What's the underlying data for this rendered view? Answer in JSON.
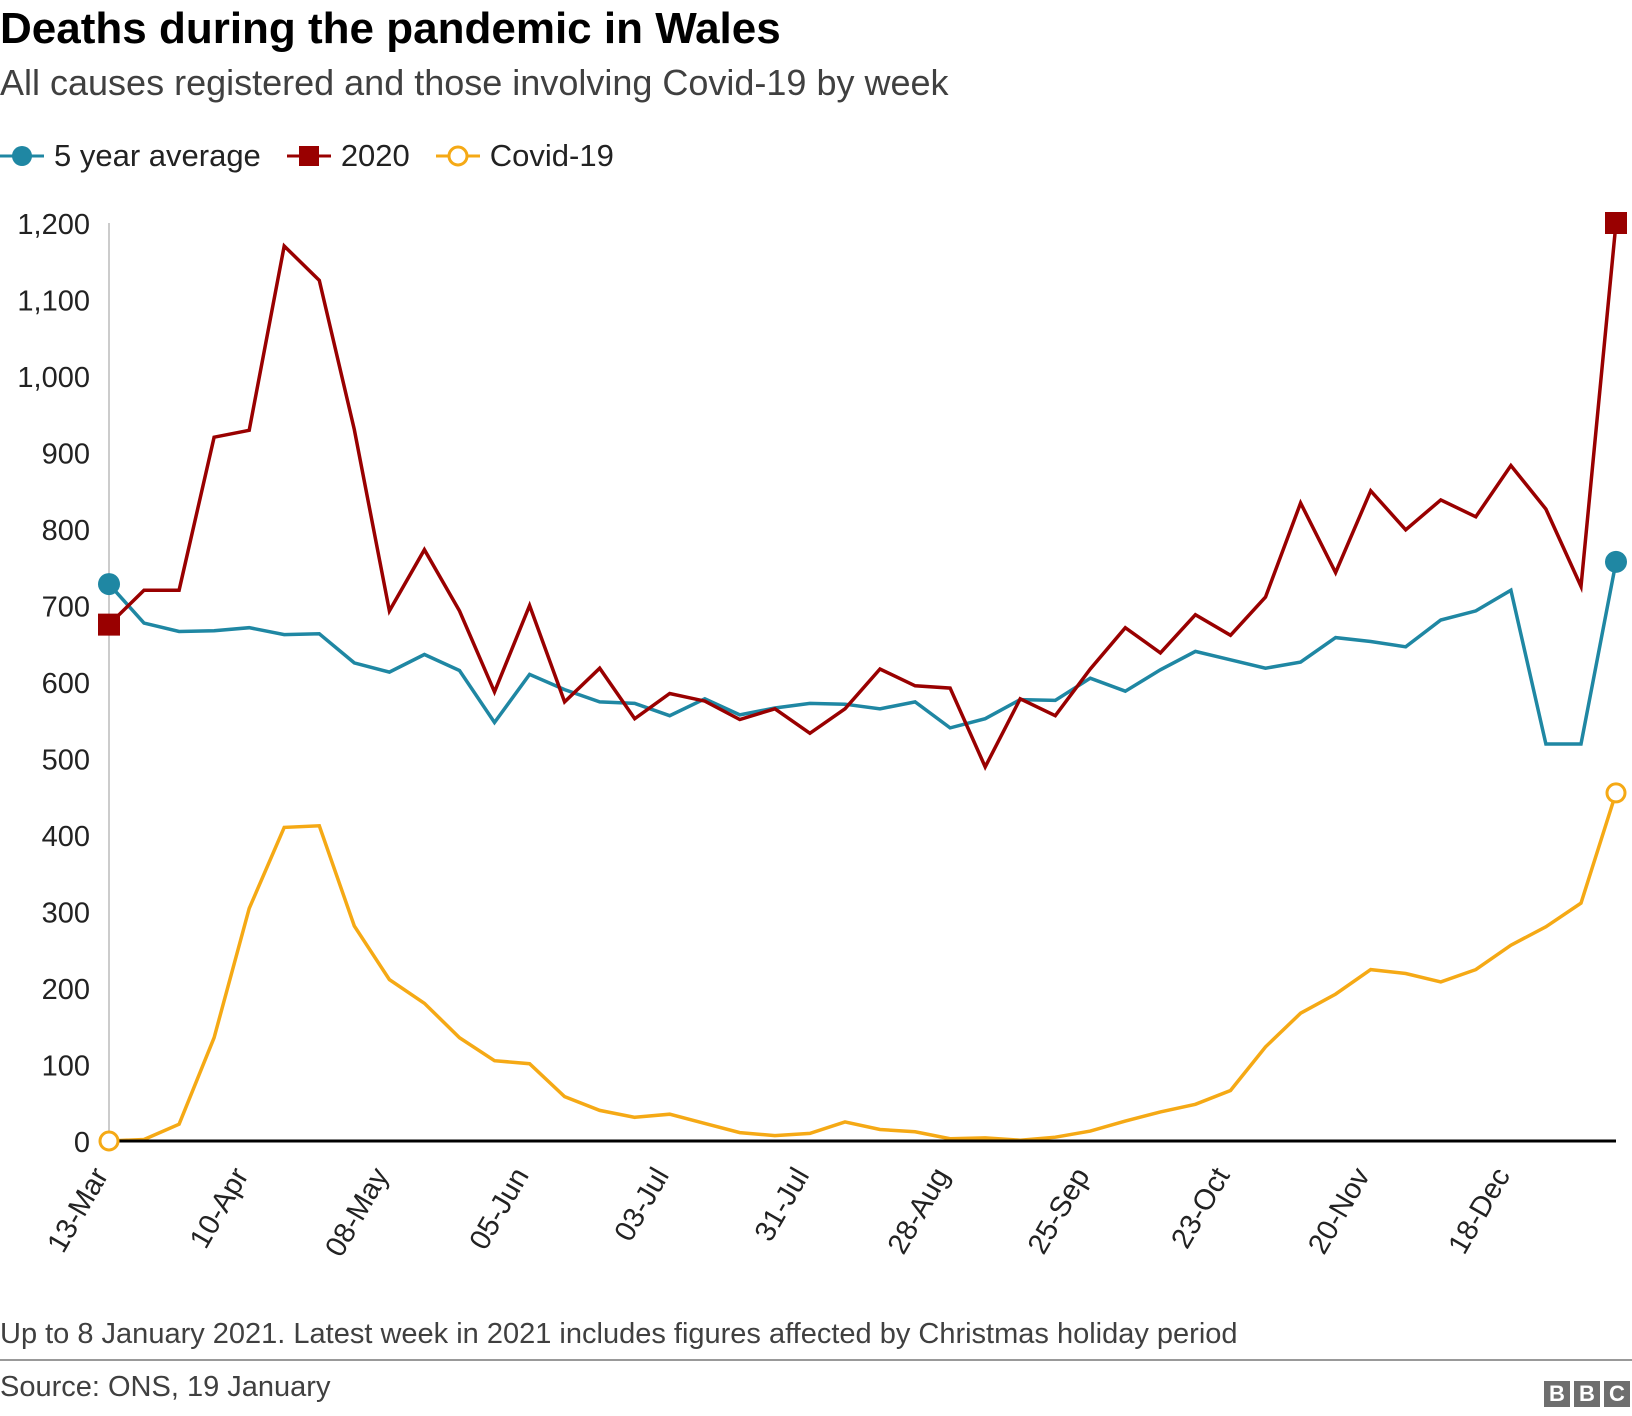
{
  "title": "Deaths during the pandemic in Wales",
  "subtitle": "All causes registered and those involving Covid-19 by week",
  "legend": [
    {
      "label": "5 year average",
      "color": "#1f87a3",
      "marker": "filled-circle"
    },
    {
      "label": "2020",
      "color": "#990000",
      "marker": "filled-square"
    },
    {
      "label": "Covid-19",
      "color": "#f5a915",
      "marker": "hollow-circle"
    }
  ],
  "note": "Up to 8 January 2021. Latest week in 2021 includes figures affected by Christmas holiday period",
  "source": "Source: ONS, 19 January",
  "logo": [
    "B",
    "B",
    "C"
  ],
  "chart_data": {
    "type": "line",
    "title": "Deaths during the pandemic in Wales",
    "xlabel": "",
    "ylabel": "",
    "ylim": [
      0,
      1200
    ],
    "yticks": [
      0,
      100,
      200,
      300,
      400,
      500,
      600,
      700,
      800,
      900,
      1000,
      1100,
      1200
    ],
    "ytick_labels": [
      "0",
      "100",
      "200",
      "300",
      "400",
      "500",
      "600",
      "700",
      "800",
      "900",
      "1,000",
      "1,100",
      "1,200"
    ],
    "xtick_labels": [
      {
        "index": 0,
        "label": "13-Mar"
      },
      {
        "index": 4,
        "label": "10-Apr"
      },
      {
        "index": 8,
        "label": "08-May"
      },
      {
        "index": 12,
        "label": "05-Jun"
      },
      {
        "index": 16,
        "label": "03-Jul"
      },
      {
        "index": 20,
        "label": "31-Jul"
      },
      {
        "index": 24,
        "label": "28-Aug"
      },
      {
        "index": 28,
        "label": "25-Sep"
      },
      {
        "index": 32,
        "label": "23-Oct"
      },
      {
        "index": 36,
        "label": "20-Nov"
      },
      {
        "index": 40,
        "label": "18-Dec"
      }
    ],
    "n_points": 44,
    "series": [
      {
        "name": "5 year average",
        "color": "#1f87a3",
        "values": [
          728,
          677,
          666,
          667,
          671,
          662,
          663,
          625,
          613,
          636,
          615,
          547,
          610,
          590,
          574,
          572,
          556,
          578,
          557,
          566,
          572,
          571,
          565,
          574,
          540,
          552,
          577,
          576,
          605,
          588,
          616,
          640,
          629,
          618,
          626,
          658,
          653,
          646,
          681,
          693,
          720,
          519,
          519,
          757
        ]
      },
      {
        "name": "2020",
        "color": "#990000",
        "values": [
          675,
          720,
          720,
          920,
          929,
          1170,
          1125,
          930,
          693,
          773,
          693,
          587,
          700,
          574,
          618,
          552,
          585,
          575,
          551,
          565,
          533,
          565,
          617,
          595,
          592,
          489,
          578,
          556,
          617,
          671,
          638,
          688,
          661,
          711,
          834,
          743,
          850,
          799,
          838,
          816,
          883,
          826,
          725,
          1200
        ]
      },
      {
        "name": "Covid-19",
        "color": "#f5a915",
        "values": [
          0,
          2,
          22,
          135,
          304,
          410,
          412,
          281,
          211,
          180,
          135,
          105,
          101,
          58,
          40,
          31,
          35,
          23,
          11,
          7,
          10,
          25,
          15,
          12,
          3,
          4,
          1,
          5,
          13,
          26,
          38,
          48,
          66,
          123,
          167,
          192,
          224,
          219,
          208,
          224,
          256,
          280,
          311,
          455
        ]
      }
    ]
  }
}
